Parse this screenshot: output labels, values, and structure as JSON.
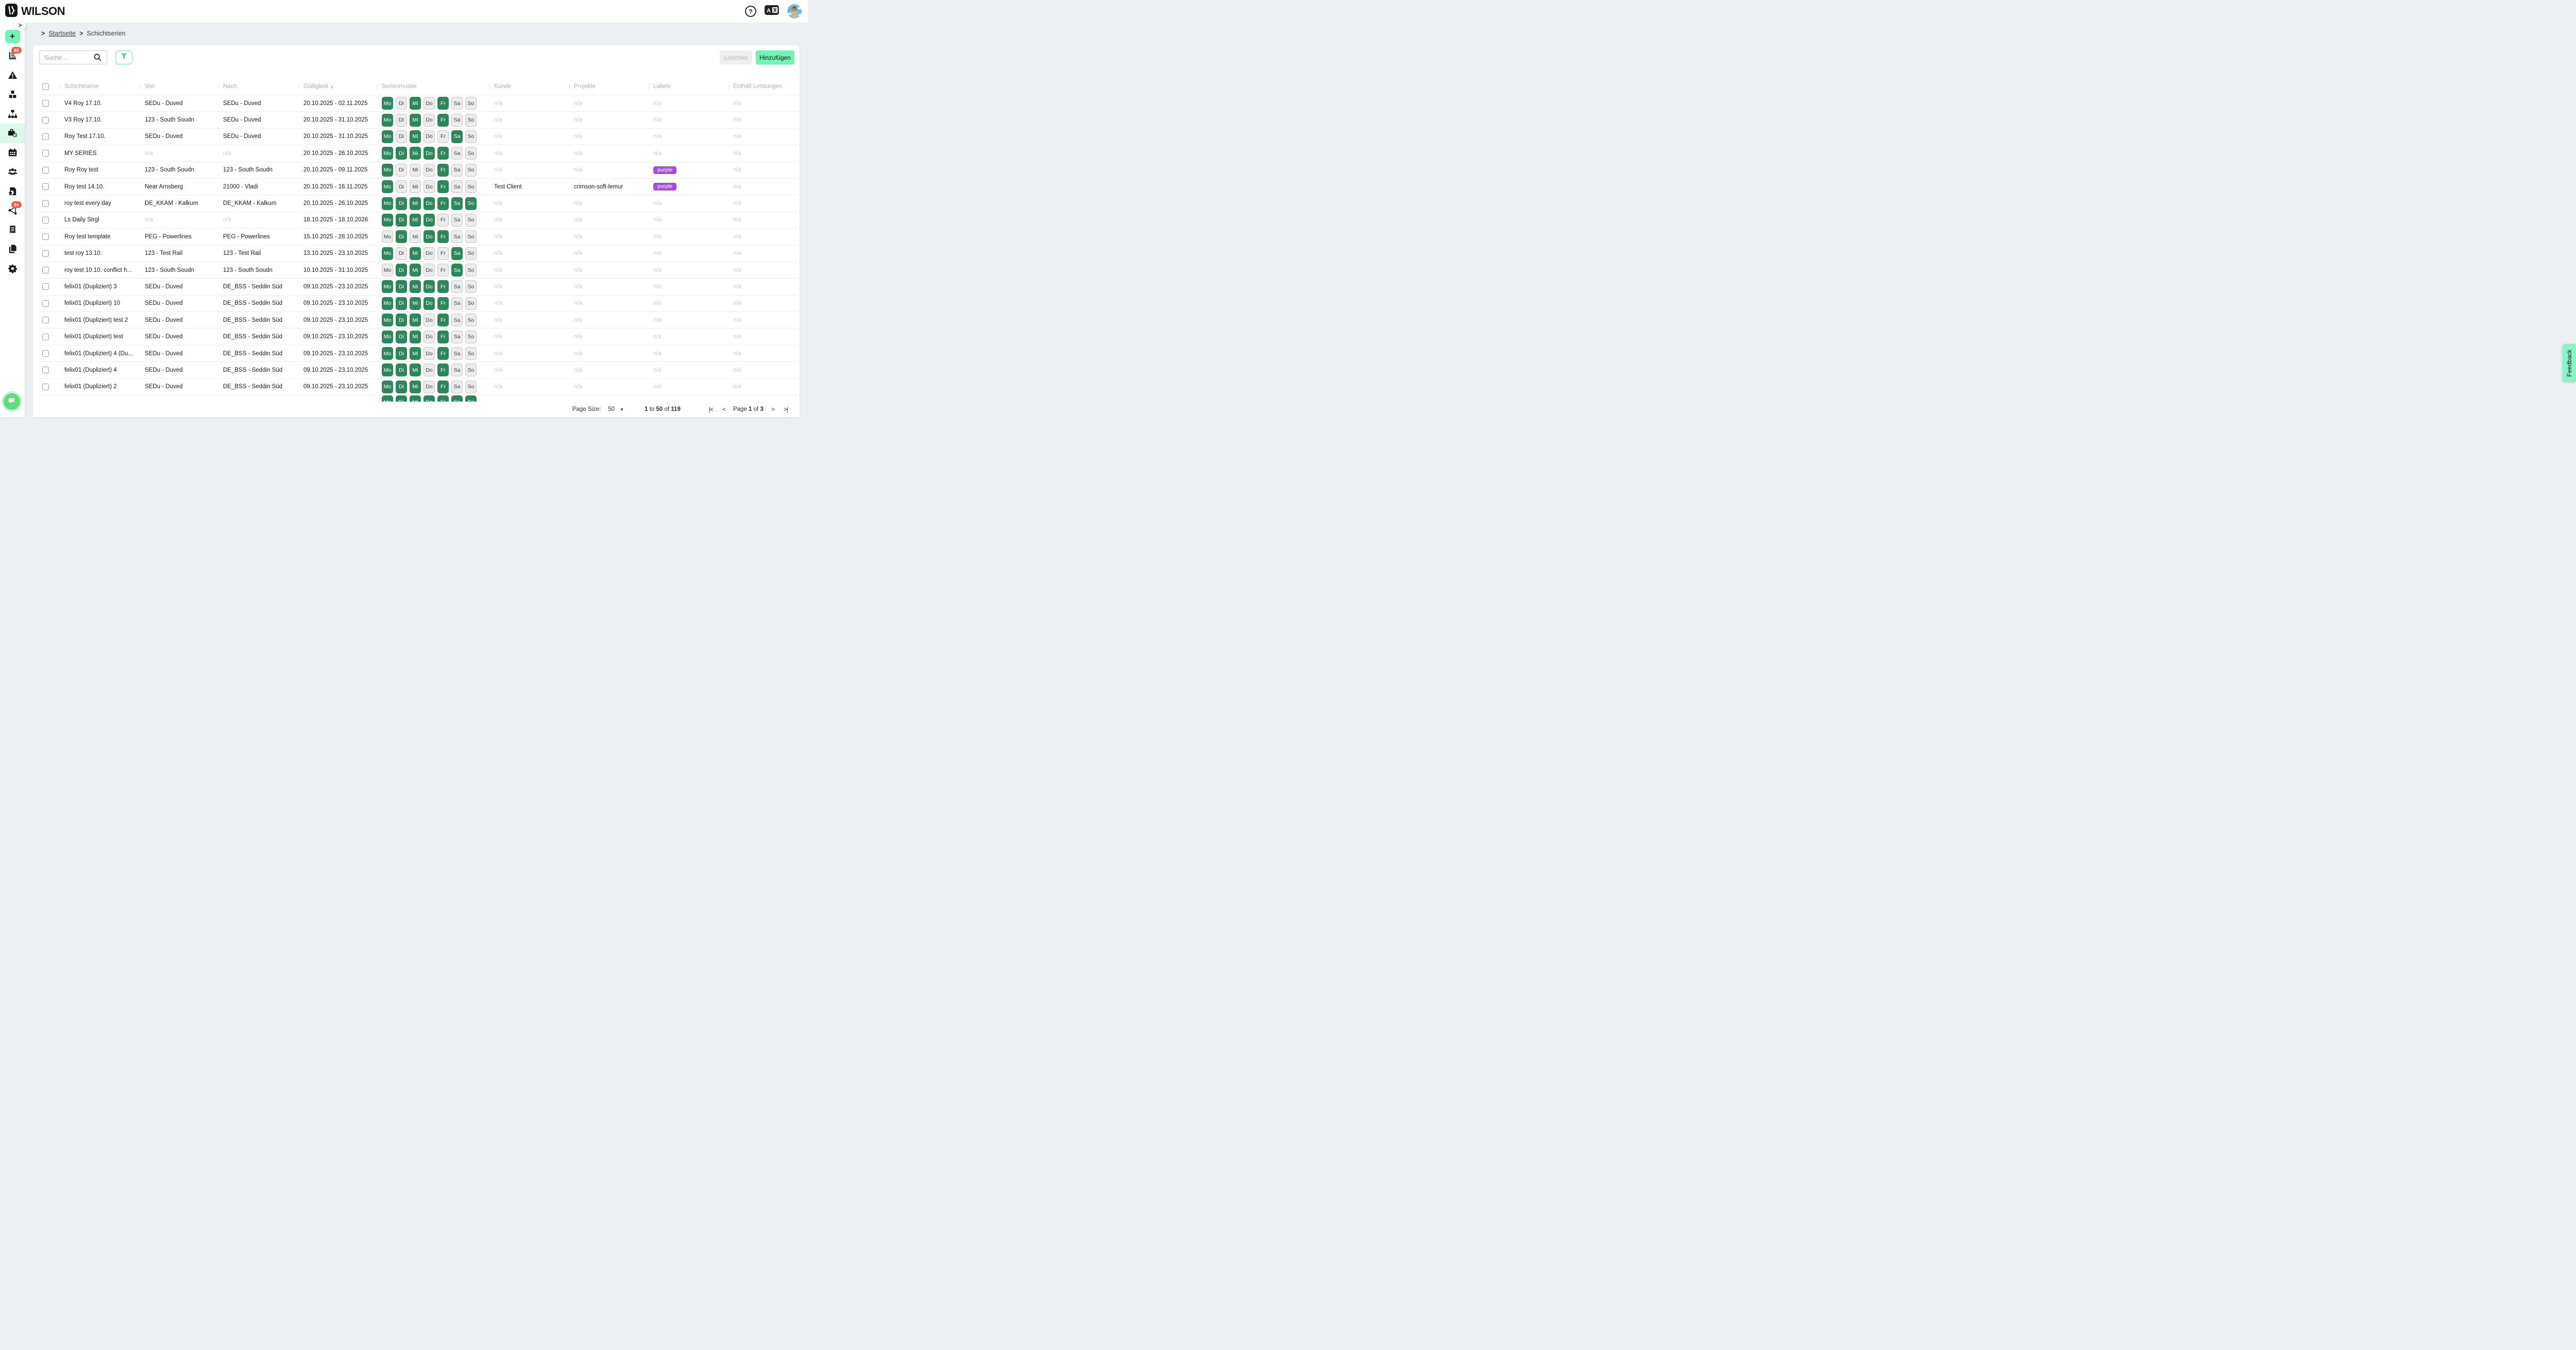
{
  "app": {
    "logo_text": "WILSON"
  },
  "topbar": {
    "help_icon": "?",
    "translate_icon": "translate",
    "avatar": "user-avatar"
  },
  "sidebar": {
    "plus_label": "+",
    "expand_chevron": ">",
    "items": [
      {
        "icon": "report",
        "badge": "80",
        "active": false
      },
      {
        "icon": "warning",
        "badge": null,
        "active": false
      },
      {
        "icon": "cubes",
        "badge": null,
        "active": false
      },
      {
        "icon": "sitemap",
        "badge": null,
        "active": false
      },
      {
        "icon": "briefcase-clock",
        "badge": null,
        "active": true
      },
      {
        "icon": "calendar",
        "badge": null,
        "active": false
      },
      {
        "icon": "people",
        "badge": null,
        "active": false
      },
      {
        "icon": "certificate",
        "badge": null,
        "active": false
      },
      {
        "icon": "network",
        "badge": "9+",
        "active": false
      },
      {
        "icon": "receipt",
        "badge": null,
        "active": false
      },
      {
        "icon": "copy",
        "badge": null,
        "active": false
      },
      {
        "icon": "gear",
        "badge": null,
        "active": false
      }
    ]
  },
  "breadcrumb": {
    "chevron": ">",
    "home": "Startseite",
    "current": "Schichtserien"
  },
  "toolbar": {
    "search_placeholder": "Suche...",
    "delete_label": "Löschen",
    "add_label": "Hinzufügen"
  },
  "table": {
    "columns": [
      "Schichtname",
      "Von",
      "Nach",
      "Gültigkeit",
      "Serienmuster",
      "Kunde",
      "Projekte",
      "Labels",
      "Enthält Leistungen"
    ],
    "sort_column": "Gültigkeit",
    "sort_arrow": "↓",
    "na_text": "n/a",
    "day_labels": [
      "Mo",
      "Di",
      "Mi",
      "Do",
      "Fr",
      "Sa",
      "So"
    ],
    "rows": [
      {
        "name": "V4 Roy 17.10.",
        "von": "SEDu - Duved",
        "nach": "SEDu - Duved",
        "gueltigkeit": "20.10.2025 - 02.11.2025",
        "days": [
          1,
          0,
          1,
          0,
          1,
          0,
          0
        ],
        "kunde": "n/a",
        "projekte": "n/a",
        "label": null,
        "leistungen": "n/a"
      },
      {
        "name": "V3 Roy 17.10.",
        "von": "123 - South Soudn",
        "nach": "SEDu - Duved",
        "gueltigkeit": "20.10.2025 - 31.10.2025",
        "days": [
          1,
          0,
          1,
          0,
          1,
          0,
          0
        ],
        "kunde": "n/a",
        "projekte": "n/a",
        "label": null,
        "leistungen": "n/a"
      },
      {
        "name": "Roy Test 17.10.",
        "von": "SEDu - Duved",
        "nach": "SEDu - Duved",
        "gueltigkeit": "20.10.2025 - 31.10.2025",
        "days": [
          1,
          0,
          1,
          0,
          0,
          1,
          0
        ],
        "kunde": "n/a",
        "projekte": "n/a",
        "label": null,
        "leistungen": "n/a"
      },
      {
        "name": "MY SERIES",
        "von": "n/a",
        "nach": "n/a",
        "gueltigkeit": "20.10.2025 - 26.10.2025",
        "days": [
          1,
          1,
          1,
          1,
          1,
          0,
          0
        ],
        "kunde": "n/a",
        "projekte": "n/a",
        "label": null,
        "leistungen": "n/a"
      },
      {
        "name": "Roy Roy test",
        "von": "123 - South Soudn",
        "nach": "123 - South Soudn",
        "gueltigkeit": "20.10.2025 - 09.11.2025",
        "days": [
          1,
          0,
          0,
          0,
          1,
          0,
          0
        ],
        "kunde": "n/a",
        "projekte": "n/a",
        "label": "purple",
        "leistungen": "n/a"
      },
      {
        "name": "Roy test 14.10.",
        "von": "Near Arnsberg",
        "nach": "21000 - Vladi",
        "gueltigkeit": "20.10.2025 - 16.11.2025",
        "days": [
          1,
          0,
          0,
          0,
          1,
          0,
          0
        ],
        "kunde": "Test Client",
        "projekte": "crimson-soft-lemur",
        "label": "purple",
        "leistungen": "n/a"
      },
      {
        "name": "roy test every day",
        "von": "DE_KKAM - Kalkum",
        "nach": "DE_KKAM - Kalkum",
        "gueltigkeit": "20.10.2025 - 26.10.2025",
        "days": [
          1,
          1,
          1,
          1,
          1,
          1,
          1
        ],
        "kunde": "n/a",
        "projekte": "n/a",
        "label": null,
        "leistungen": "n/a"
      },
      {
        "name": "Ls Daily Strgl",
        "von": "n/a",
        "nach": "n/a",
        "gueltigkeit": "18.10.2025 - 18.10.2026",
        "days": [
          1,
          1,
          1,
          1,
          0,
          0,
          0
        ],
        "kunde": "n/a",
        "projekte": "n/a",
        "label": null,
        "leistungen": "n/a"
      },
      {
        "name": "Roy test template",
        "von": "PEG - Powerlines",
        "nach": "PEG - Powerlines",
        "gueltigkeit": "15.10.2025 - 28.10.2025",
        "days": [
          0,
          1,
          0,
          1,
          1,
          0,
          0
        ],
        "kunde": "n/a",
        "projekte": "n/a",
        "label": null,
        "leistungen": "n/a"
      },
      {
        "name": "test roy 13.10.",
        "von": "123 - Test Rail",
        "nach": "123 - Test Rail",
        "gueltigkeit": "13.10.2025 - 23.10.2025",
        "days": [
          1,
          0,
          1,
          0,
          0,
          1,
          0
        ],
        "kunde": "n/a",
        "projekte": "n/a",
        "label": null,
        "leistungen": "n/a"
      },
      {
        "name": "roy test 10.10. conflict h...",
        "von": "123 - South Soudn",
        "nach": "123 - South Soudn",
        "gueltigkeit": "10.10.2025 - 31.10.2025",
        "days": [
          0,
          1,
          1,
          0,
          0,
          1,
          0
        ],
        "kunde": "n/a",
        "projekte": "n/a",
        "label": null,
        "leistungen": "n/a"
      },
      {
        "name": "felix01 (Dupliziert) 3",
        "von": "SEDu - Duved",
        "nach": "DE_BSS - Seddin Süd",
        "gueltigkeit": "09.10.2025 - 23.10.2025",
        "days": [
          1,
          1,
          1,
          1,
          1,
          0,
          0
        ],
        "kunde": "n/a",
        "projekte": "n/a",
        "label": null,
        "leistungen": "n/a"
      },
      {
        "name": "felix01 (Dupliziert) 10",
        "von": "SEDu - Duved",
        "nach": "DE_BSS - Seddin Süd",
        "gueltigkeit": "09.10.2025 - 23.10.2025",
        "days": [
          1,
          1,
          1,
          1,
          1,
          0,
          0
        ],
        "kunde": "n/a",
        "projekte": "n/a",
        "label": null,
        "leistungen": "n/a"
      },
      {
        "name": "felix01 (Dupliziert) test 2",
        "von": "SEDu - Duved",
        "nach": "DE_BSS - Seddin Süd",
        "gueltigkeit": "09.10.2025 - 23.10.2025",
        "days": [
          1,
          1,
          1,
          0,
          1,
          0,
          0
        ],
        "kunde": "n/a",
        "projekte": "n/a",
        "label": null,
        "leistungen": "n/a"
      },
      {
        "name": "felix01 (Dupliziert) test",
        "von": "SEDu - Duved",
        "nach": "DE_BSS - Seddin Süd",
        "gueltigkeit": "09.10.2025 - 23.10.2025",
        "days": [
          1,
          1,
          1,
          0,
          1,
          0,
          0
        ],
        "kunde": "n/a",
        "projekte": "n/a",
        "label": null,
        "leistungen": "n/a"
      },
      {
        "name": "felix01 (Dupliziert) 4 (Du...",
        "von": "SEDu - Duved",
        "nach": "DE_BSS - Seddin Süd",
        "gueltigkeit": "09.10.2025 - 23.10.2025",
        "days": [
          1,
          1,
          1,
          0,
          1,
          0,
          0
        ],
        "kunde": "n/a",
        "projekte": "n/a",
        "label": null,
        "leistungen": "n/a"
      },
      {
        "name": "felix01 (Dupliziert) 4",
        "von": "SEDu - Duved",
        "nach": "DE_BSS - Seddin Süd",
        "gueltigkeit": "09.10.2025 - 23.10.2025",
        "days": [
          1,
          1,
          1,
          0,
          1,
          0,
          0
        ],
        "kunde": "n/a",
        "projekte": "n/a",
        "label": null,
        "leistungen": "n/a"
      },
      {
        "name": "felix01 (Dupliziert) 2",
        "von": "SEDu - Duved",
        "nach": "DE_BSS - Seddin Süd",
        "gueltigkeit": "09.10.2025 - 23.10.2025",
        "days": [
          1,
          1,
          1,
          0,
          1,
          0,
          0
        ],
        "kunde": "n/a",
        "projekte": "n/a",
        "label": null,
        "leistungen": "n/a"
      },
      {
        "name": "",
        "von": "",
        "nach": "",
        "gueltigkeit": "",
        "days": [
          1,
          1,
          1,
          1,
          1,
          1,
          1
        ],
        "kunde": "",
        "projekte": "",
        "label": null,
        "leistungen": "",
        "partial": true
      }
    ]
  },
  "pagination": {
    "page_size_label": "Page Size:",
    "page_size": "50",
    "range_from": "1",
    "word_to": "to",
    "range_to": "50",
    "word_of": "of",
    "range_total": "119",
    "word_page": "Page",
    "page_current": "1",
    "page_total": "3",
    "first_icon": "|<",
    "prev_icon": "<",
    "next_icon": ">",
    "last_icon": ">|"
  },
  "feedback_label": "Feedback",
  "colors": {
    "accent_mint": "#74f1b4",
    "day_active_green": "#2d875a",
    "label_purple": "#a64fd6",
    "badge_red": "#f4564d",
    "chat_green": "#64da7e"
  }
}
